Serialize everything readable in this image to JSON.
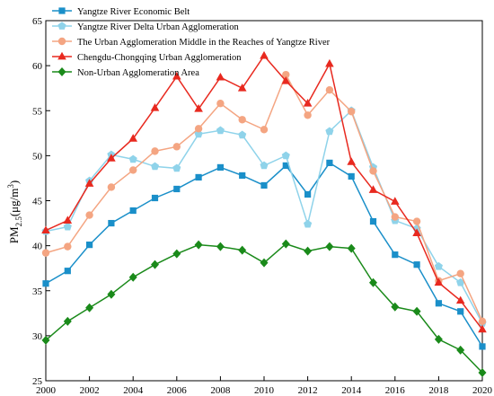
{
  "chart_data": {
    "type": "line",
    "title": "",
    "xlabel": "",
    "ylabel": {
      "main": "PM",
      "sub": "2.5",
      "unit_prefix": "(μg/m",
      "unit_sup": "3",
      "unit_suffix": ")"
    },
    "xlim": [
      2000,
      2020
    ],
    "ylim": [
      25,
      65
    ],
    "x_ticks": [
      2000,
      2002,
      2004,
      2006,
      2008,
      2010,
      2012,
      2014,
      2016,
      2018,
      2020
    ],
    "y_ticks": [
      25,
      30,
      35,
      40,
      45,
      50,
      55,
      60,
      65
    ],
    "grid": false,
    "legend_position": "top-left",
    "x": [
      2000,
      2001,
      2002,
      2003,
      2004,
      2005,
      2006,
      2007,
      2008,
      2009,
      2010,
      2011,
      2012,
      2013,
      2014,
      2015,
      2016,
      2017,
      2018,
      2019,
      2020
    ],
    "series": [
      {
        "name": "Yangtze River Economic Belt",
        "color": "#1a8fc9",
        "marker": "square",
        "values": [
          35.8,
          37.2,
          40.1,
          42.5,
          43.9,
          45.3,
          46.3,
          47.6,
          48.7,
          47.8,
          46.7,
          48.9,
          45.7,
          49.2,
          47.7,
          42.7,
          39.0,
          37.9,
          33.6,
          32.7,
          28.8
        ]
      },
      {
        "name": "Yangtze River Delta Urban Agglomeration",
        "color": "#8fd3ea",
        "marker": "pentagon",
        "values": [
          41.6,
          42.1,
          47.2,
          50.1,
          49.6,
          48.8,
          48.6,
          52.4,
          52.8,
          52.3,
          48.9,
          50.0,
          42.4,
          52.7,
          55.0,
          48.7,
          42.8,
          41.9,
          37.7,
          35.9,
          31.4
        ]
      },
      {
        "name": "The Urban Agglomeration Middle in the Reaches of Yangtze River",
        "color": "#f4a582",
        "marker": "circle",
        "values": [
          39.2,
          39.9,
          43.4,
          46.5,
          48.4,
          50.5,
          51.0,
          53.0,
          55.8,
          54.0,
          52.9,
          59.0,
          54.5,
          57.3,
          54.9,
          48.3,
          43.2,
          42.7,
          36.1,
          36.9,
          31.6
        ]
      },
      {
        "name": "Chengdu-Chongqing Urban Agglomeration",
        "color": "#e8291f",
        "marker": "triangle",
        "values": [
          41.7,
          42.8,
          46.9,
          49.7,
          51.9,
          55.3,
          58.8,
          55.2,
          58.7,
          57.5,
          61.1,
          58.3,
          55.8,
          60.2,
          49.3,
          46.2,
          44.9,
          41.4,
          35.9,
          33.9,
          30.7
        ]
      },
      {
        "name": "Non-Urban Agglomeration Area",
        "color": "#1a8a1a",
        "marker": "diamond",
        "values": [
          29.5,
          31.6,
          33.1,
          34.6,
          36.5,
          37.9,
          39.1,
          40.1,
          39.9,
          39.5,
          38.1,
          40.2,
          39.4,
          39.9,
          39.7,
          35.9,
          33.2,
          32.7,
          29.6,
          28.4,
          25.9
        ]
      }
    ]
  }
}
